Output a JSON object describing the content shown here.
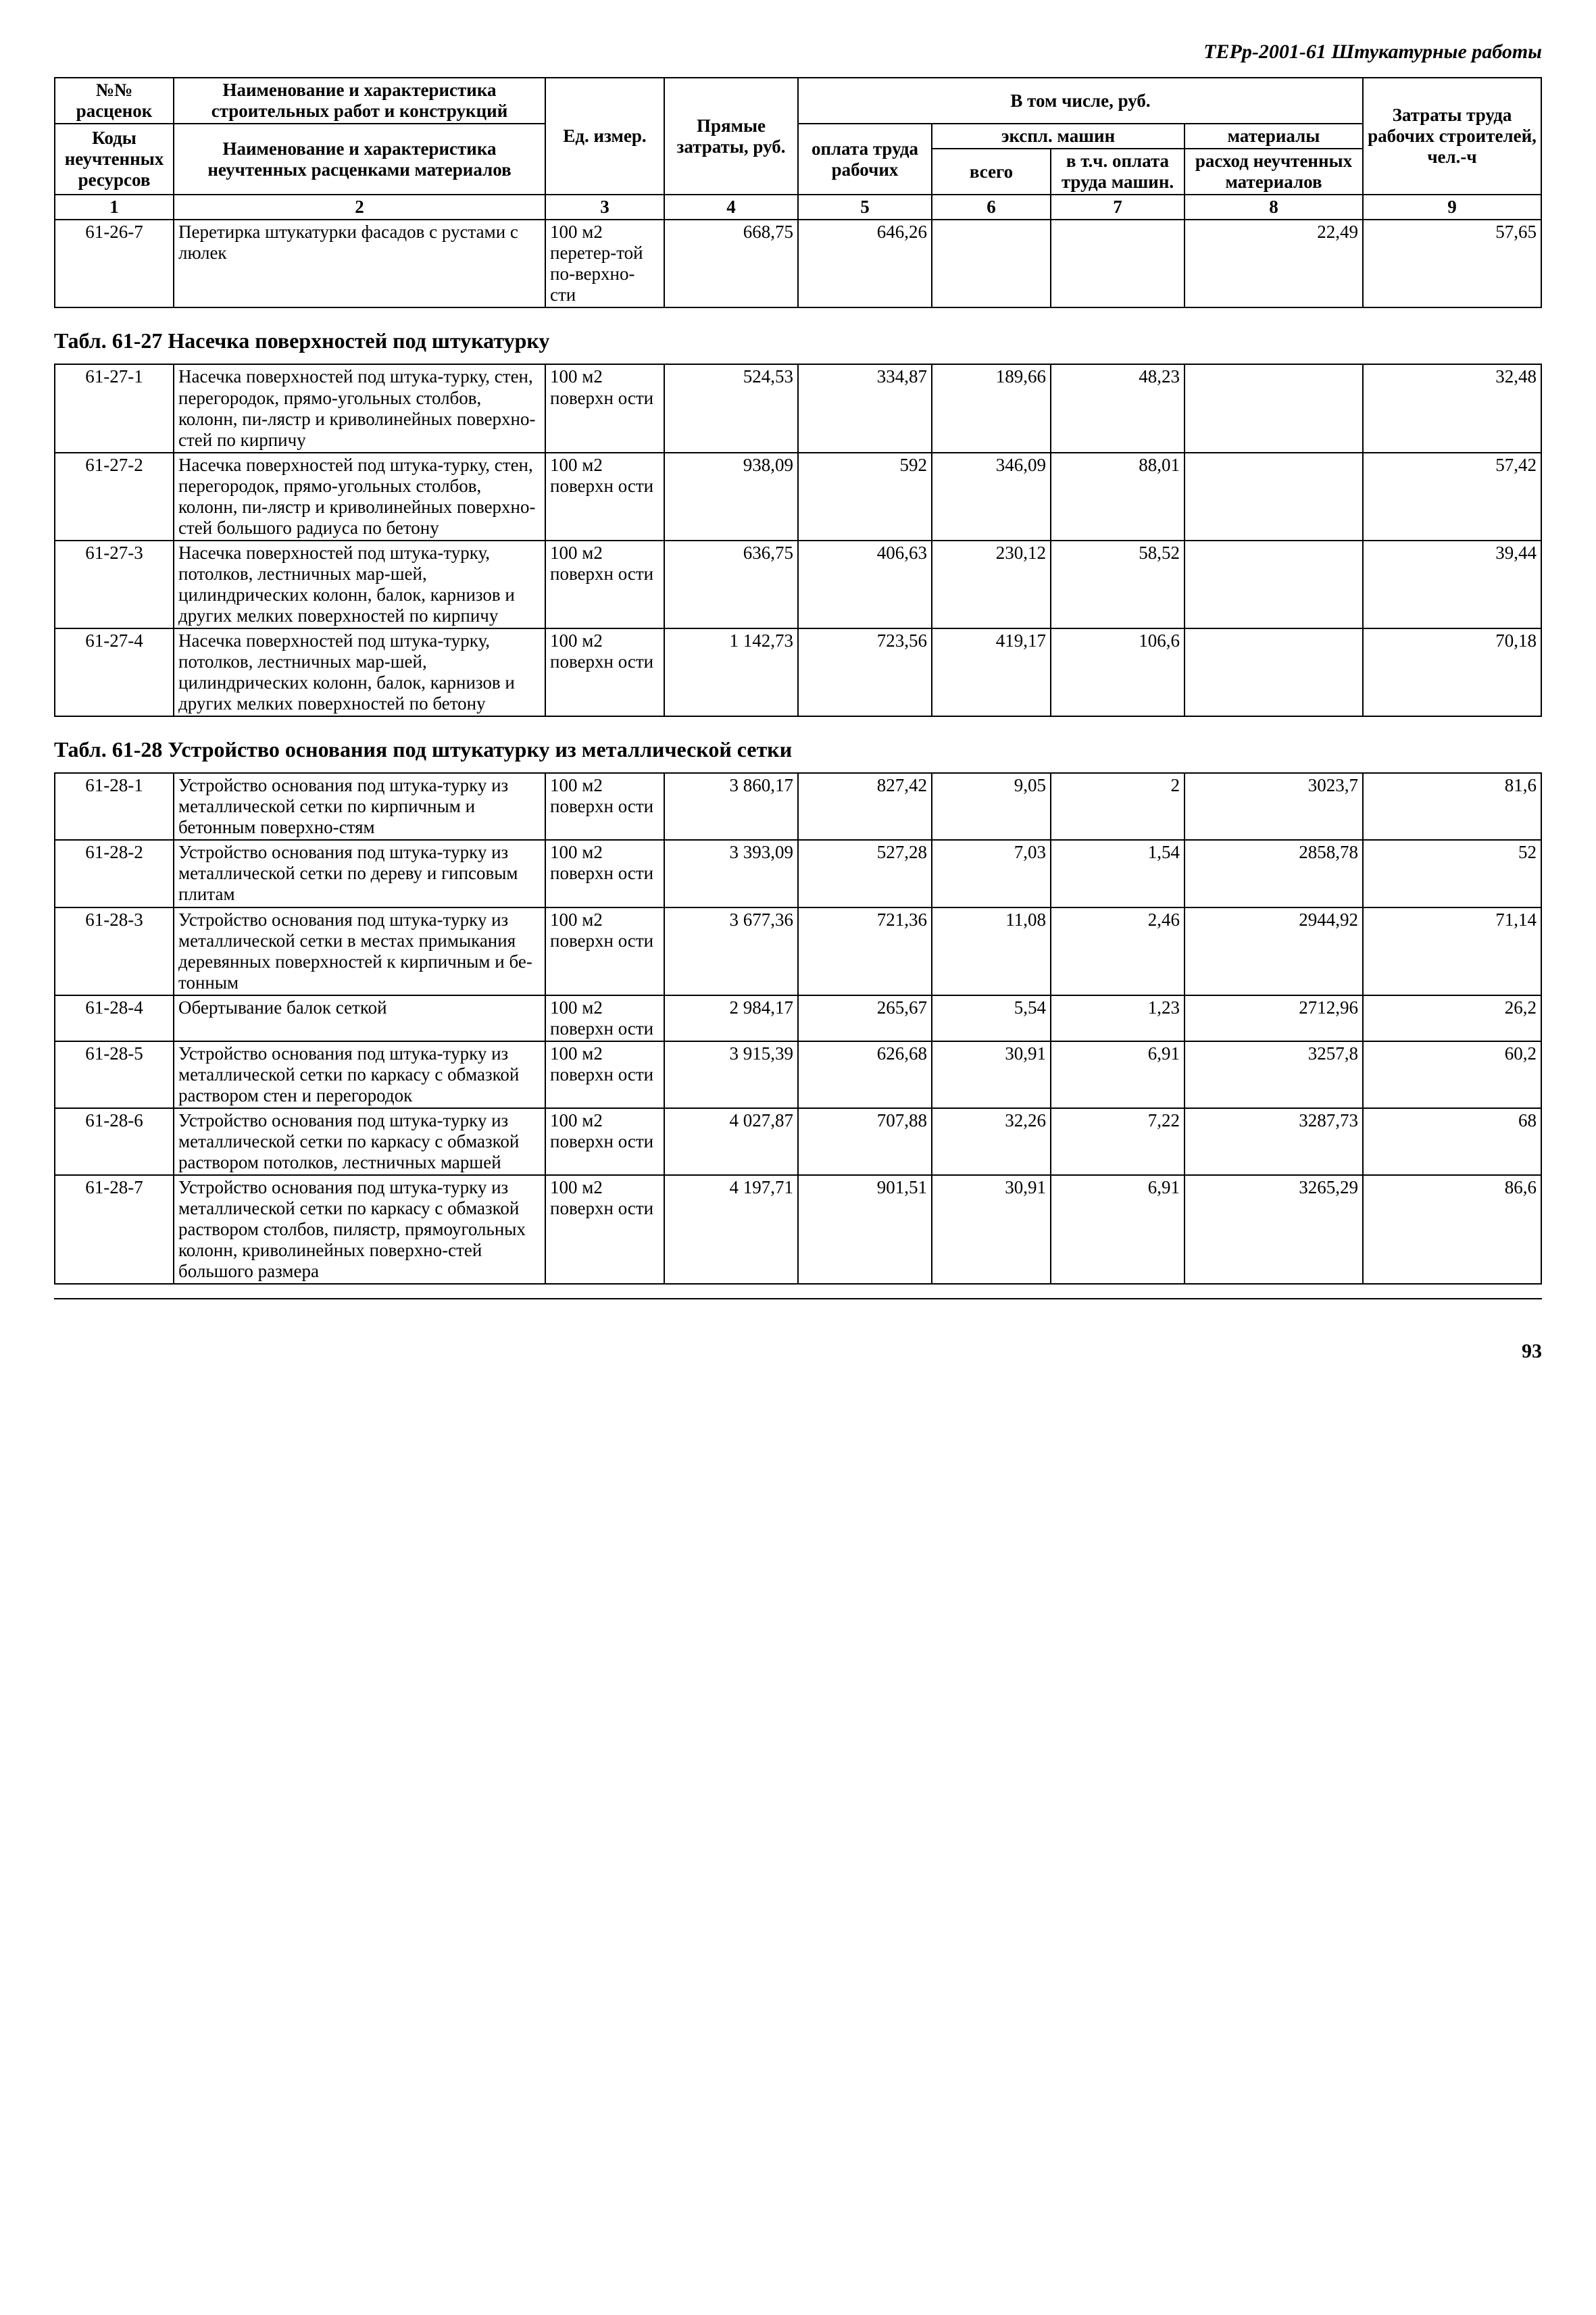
{
  "doc_header": "ТЕРр-2001-61  Штукатурные работы",
  "page_number": "93",
  "header_table": {
    "r1": {
      "c1": "№№ расценок",
      "c2": "Наименование и характеристика строительных работ и конструкций",
      "c3": "Ед. измер.",
      "c4": "Прямые затраты, руб.",
      "c_group": "В том числе, руб.",
      "c9": "Затраты труда рабочих строителей, чел.-ч"
    },
    "r2": {
      "c5": "оплата труда рабочих",
      "c67": "экспл. машин",
      "c8": "материалы"
    },
    "r3": {
      "c1": "Коды неучтенных ресурсов",
      "c2": "Наименование и характеристика неучтенных расценками материалов",
      "c6": "всего",
      "c7": "в т.ч. оплата труда машин.",
      "c8": "расход неучтенных материалов"
    },
    "colnums": [
      "1",
      "2",
      "3",
      "4",
      "5",
      "6",
      "7",
      "8",
      "9"
    ]
  },
  "row_26_7": {
    "code": "61-26-7",
    "name": "Перетирка штукатурки фасадов с рустами с люлек",
    "unit": "100 м2 перетер-той по-верхно-сти",
    "c4": "668,75",
    "c5": "646,26",
    "c6": "",
    "c7": "",
    "c8": "22,49",
    "c9": "57,65"
  },
  "section_27_title": "Табл. 61-27 Насечка поверхностей под штукатурку",
  "rows_27": [
    {
      "code": "61-27-1",
      "name": "Насечка поверхностей под штука-турку, стен, перегородок, прямо-угольных столбов, колонн, пи-лястр и криволинейных поверхно-стей  по кирпичу",
      "unit": "100 м2 поверхн ости",
      "c4": "524,53",
      "c5": "334,87",
      "c6": "189,66",
      "c7": "48,23",
      "c8": "",
      "c9": "32,48"
    },
    {
      "code": "61-27-2",
      "name": "Насечка поверхностей под штука-турку, стен, перегородок, прямо-угольных столбов, колонн, пи-лястр и криволинейных поверхно-стей большого радиуса по бетону",
      "unit": "100 м2 поверхн ости",
      "c4": "938,09",
      "c5": "592",
      "c6": "346,09",
      "c7": "88,01",
      "c8": "",
      "c9": "57,42"
    },
    {
      "code": "61-27-3",
      "name": "Насечка поверхностей под штука-турку, потолков, лестничных мар-шей, цилиндрических колонн, балок,  карнизов и других мелких поверхностей по кирпичу",
      "unit": "100 м2 поверхн ости",
      "c4": "636,75",
      "c5": "406,63",
      "c6": "230,12",
      "c7": "58,52",
      "c8": "",
      "c9": "39,44"
    },
    {
      "code": "61-27-4",
      "name": "Насечка поверхностей под штука-турку, потолков, лестничных мар-шей, цилиндрических колонн, балок,  карнизов и других мелких поверхностей по бетону",
      "unit": "100 м2 поверхн ости",
      "c4": "1 142,73",
      "c5": "723,56",
      "c6": "419,17",
      "c7": "106,6",
      "c8": "",
      "c9": "70,18"
    }
  ],
  "section_28_title": "Табл. 61-28 Устройство основания под штукатурку из металлической сетки",
  "rows_28": [
    {
      "code": "61-28-1",
      "name": "Устройство основания под штука-турку из металлической сетки по кирпичным и бетонным поверхно-стям",
      "unit": "100 м2 поверхн ости",
      "c4": "3 860,17",
      "c5": "827,42",
      "c6": "9,05",
      "c7": "2",
      "c8": "3023,7",
      "c9": "81,6"
    },
    {
      "code": "61-28-2",
      "name": "Устройство основания под штука-турку из металлической сетки по дереву и гипсовым плитам",
      "unit": "100 м2 поверхн ости",
      "c4": "3 393,09",
      "c5": "527,28",
      "c6": "7,03",
      "c7": "1,54",
      "c8": "2858,78",
      "c9": "52"
    },
    {
      "code": "61-28-3",
      "name": "Устройство основания под штука-турку из металлической сетки в местах примыкания деревянных поверхностей к кирпичным и бе-тонным",
      "unit": "100 м2 поверхн ости",
      "c4": "3 677,36",
      "c5": "721,36",
      "c6": "11,08",
      "c7": "2,46",
      "c8": "2944,92",
      "c9": "71,14"
    },
    {
      "code": "61-28-4",
      "name": "Обертывание балок сеткой",
      "unit": "100 м2 поверхн ости",
      "c4": "2 984,17",
      "c5": "265,67",
      "c6": "5,54",
      "c7": "1,23",
      "c8": "2712,96",
      "c9": "26,2"
    },
    {
      "code": "61-28-5",
      "name": "Устройство основания под штука-турку из металлической сетки по каркасу с обмазкой раствором стен и перегородок",
      "unit": "100 м2 поверхн ости",
      "c4": "3 915,39",
      "c5": "626,68",
      "c6": "30,91",
      "c7": "6,91",
      "c8": "3257,8",
      "c9": "60,2"
    },
    {
      "code": "61-28-6",
      "name": "Устройство основания под штука-турку из металлической сетки по каркасу с обмазкой раствором потолков, лестничных маршей",
      "unit": "100 м2 поверхн ости",
      "c4": "4 027,87",
      "c5": "707,88",
      "c6": "32,26",
      "c7": "7,22",
      "c8": "3287,73",
      "c9": "68"
    },
    {
      "code": "61-28-7",
      "name": "Устройство основания под штука-турку из металлической сетки по каркасу с обмазкой раствором столбов, пилястр, прямоугольных колонн, криволинейных поверхно-стей большого размера",
      "unit": "100 м2 поверхн ости",
      "c4": "4 197,71",
      "c5": "901,51",
      "c6": "30,91",
      "c7": "6,91",
      "c8": "3265,29",
      "c9": "86,6"
    }
  ]
}
